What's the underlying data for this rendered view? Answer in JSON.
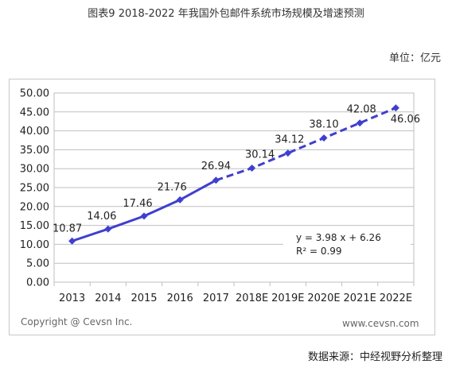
{
  "header": {
    "title": "图表9   2018-2022 年我国外包邮件系统市场规模及增速预测",
    "unit": "单位：亿元"
  },
  "footer": {
    "source": "数据来源：中经视野分析整理"
  },
  "watermark": {
    "copyright": "Copyright @ Cevsn Inc.",
    "site": "www.cevsn.com"
  },
  "chart_data": {
    "type": "line",
    "title": "",
    "xlabel": "",
    "ylabel": "",
    "categories": [
      "2013",
      "2014",
      "2015",
      "2016",
      "2017",
      "2018E",
      "2019E",
      "2020E",
      "2021E",
      "2022E"
    ],
    "series": [
      {
        "values": [
          10.87,
          14.06,
          17.46,
          21.76,
          26.94,
          30.14,
          34.12,
          38.1,
          42.08,
          46.06
        ],
        "labels": [
          "10.87",
          "14.06",
          "17.46",
          "21.76",
          "26.94",
          "30.14",
          "34.12",
          "38.10",
          "42.08",
          "46.06"
        ],
        "color": "#3f3fcf",
        "actual_count": 5,
        "forecast_style": "dashed"
      }
    ],
    "ylim": [
      0,
      50
    ],
    "yticks": [
      "0.00",
      "5.00",
      "10.00",
      "15.00",
      "20.00",
      "25.00",
      "30.00",
      "35.00",
      "40.00",
      "45.00",
      "50.00"
    ],
    "grid": true,
    "annotations": {
      "equation": "y = 3.98 x + 6.26",
      "r_squared": "R² = 0.99"
    }
  }
}
